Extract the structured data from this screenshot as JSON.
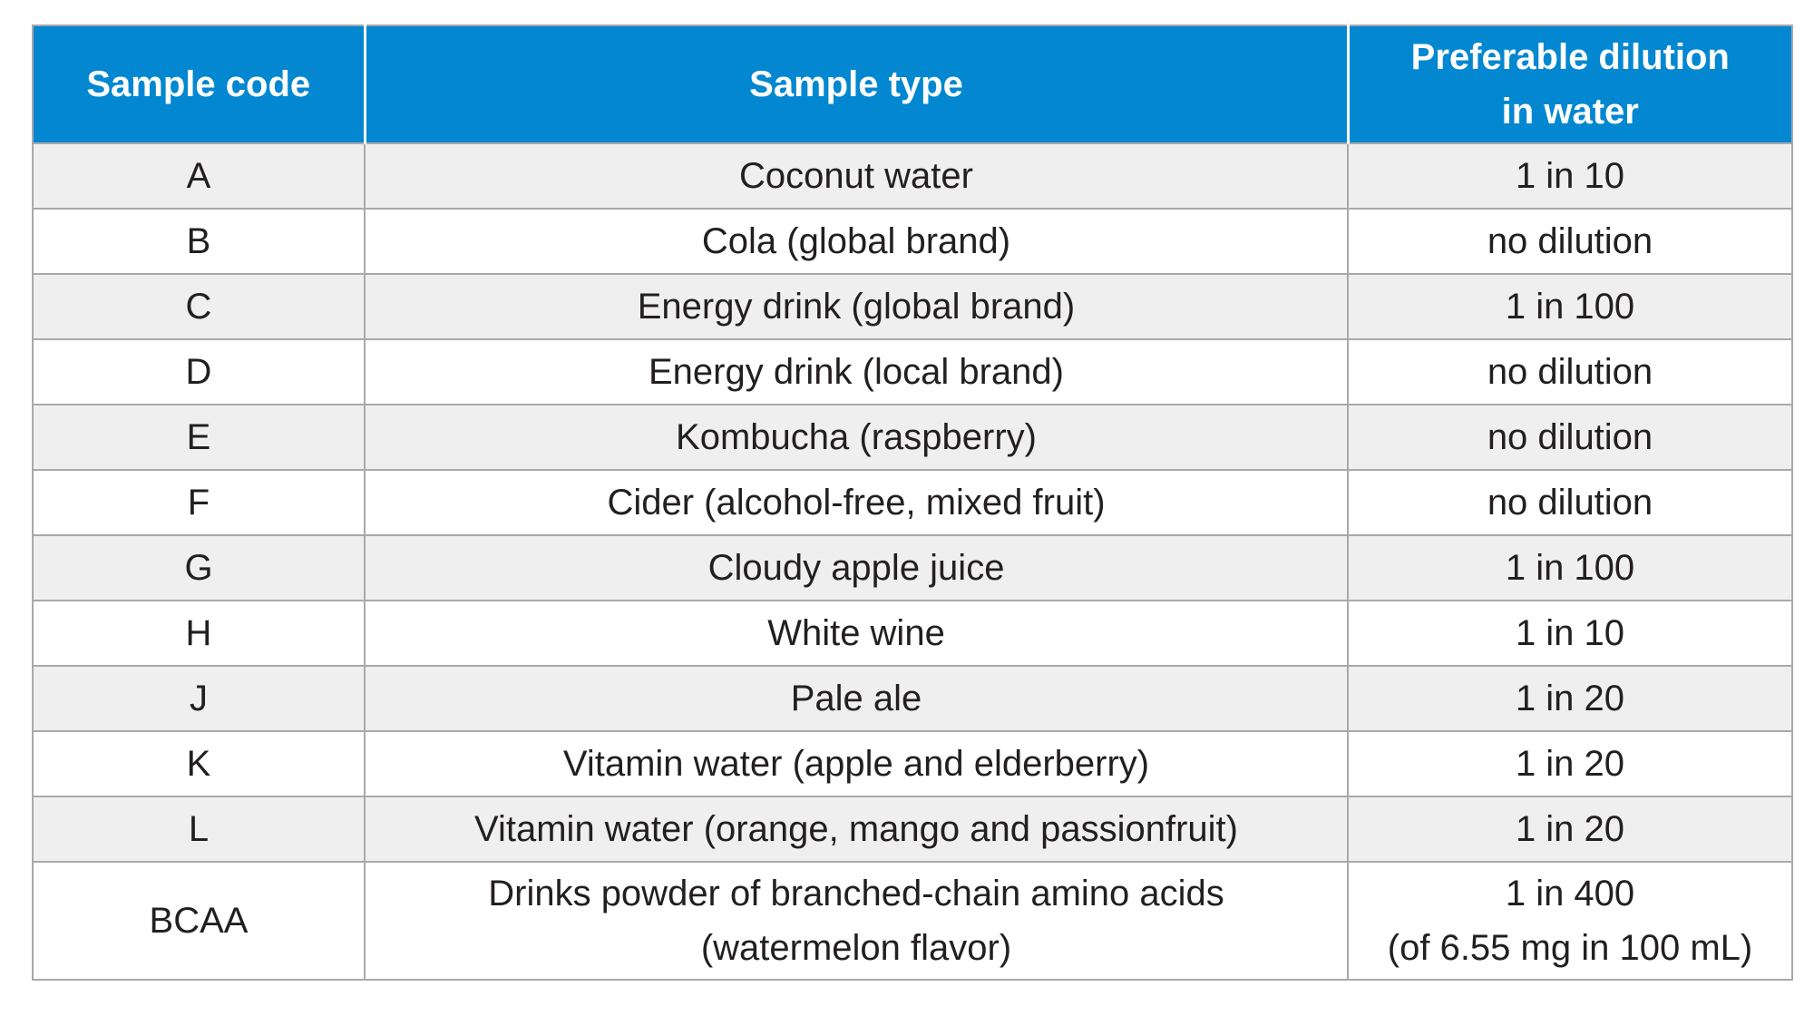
{
  "table": {
    "headers": {
      "code": "Sample code",
      "type": "Sample type",
      "dilution_line1": "Preferable dilution",
      "dilution_line2": "in water"
    },
    "rows": [
      {
        "code": "A",
        "type": "Coconut water",
        "dilution": "1 in 10"
      },
      {
        "code": "B",
        "type": "Cola (global brand)",
        "dilution": "no dilution"
      },
      {
        "code": "C",
        "type": "Energy drink (global brand)",
        "dilution": "1 in 100"
      },
      {
        "code": "D",
        "type": "Energy drink (local brand)",
        "dilution": "no dilution"
      },
      {
        "code": "E",
        "type": "Kombucha (raspberry)",
        "dilution": "no dilution"
      },
      {
        "code": "F",
        "type": "Cider (alcohol-free, mixed fruit)",
        "dilution": "no dilution"
      },
      {
        "code": "G",
        "type": "Cloudy apple juice",
        "dilution": "1 in 100"
      },
      {
        "code": "H",
        "type": "White wine",
        "dilution": "1 in 10"
      },
      {
        "code": "J",
        "type": "Pale ale",
        "dilution": "1 in 20"
      },
      {
        "code": "K",
        "type": "Vitamin water (apple and elderberry)",
        "dilution": "1 in 20"
      },
      {
        "code": "L",
        "type": "Vitamin water (orange, mango and passionfruit)",
        "dilution": "1 in 20"
      }
    ],
    "last_row": {
      "code": "BCAA",
      "type_line1": "Drinks powder of branched-chain amino acids",
      "type_line2": "(watermelon flavor)",
      "dilution_line1": "1 in 400",
      "dilution_line2": "(of 6.55 mg in 100 mL)"
    }
  },
  "colors": {
    "header_bg": "#0387d0",
    "header_text": "#ffffff",
    "shaded_row": "#efeff0",
    "border": "#a7a9ac",
    "body_text": "#231f20"
  }
}
